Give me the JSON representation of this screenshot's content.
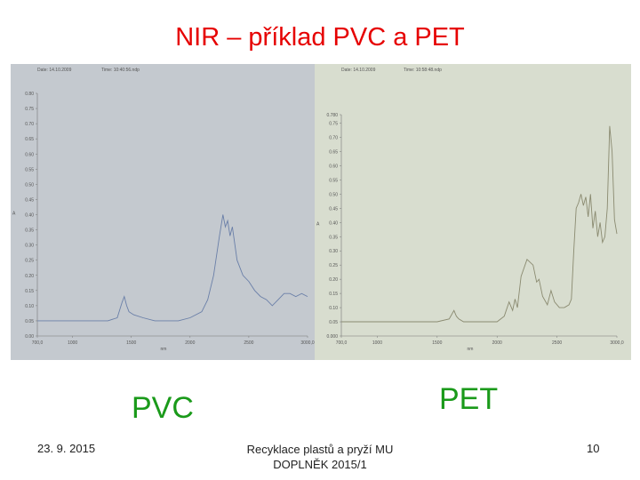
{
  "slide": {
    "title": "NIR – příklad PVC a PET",
    "label_pvc": "PVC",
    "label_pet": "PET",
    "footer_date": "23. 9. 2015",
    "footer_line1": "Recyklace plastů a pryží MU",
    "footer_line2": "DOPLNĚK 2015/1",
    "page_number": "10"
  },
  "chart_data": [
    {
      "type": "line",
      "title": "",
      "header_date": "Date: 14.10.2009",
      "header_time": "Time: 10:40:56.ndp",
      "xlabel": "nm",
      "ylabel": "A",
      "xlim": [
        700,
        3000
      ],
      "ylim": [
        0.0,
        0.8
      ],
      "x_ticks": [
        "700,0",
        "1000",
        "1500",
        "2000",
        "2500",
        "3000,0"
      ],
      "x_tick_values": [
        700,
        1000,
        1500,
        2000,
        2500,
        3000
      ],
      "y_ticks": [
        "0.00",
        "0.05",
        "0.10",
        "0.15",
        "0.20",
        "0.25",
        "0.30",
        "0.35",
        "0.40",
        "0.45",
        "0.50",
        "0.55",
        "0.60",
        "0.65",
        "0.70",
        "0.75",
        "0.80"
      ],
      "y_tick_values": [
        0,
        0.05,
        0.1,
        0.15,
        0.2,
        0.25,
        0.3,
        0.35,
        0.4,
        0.45,
        0.5,
        0.55,
        0.6,
        0.65,
        0.7,
        0.75,
        0.8
      ],
      "color": "#6a7fa8",
      "series": [
        {
          "x": [
            700,
            800,
            900,
            1000,
            1100,
            1200,
            1300,
            1380,
            1420,
            1440,
            1460,
            1480,
            1520,
            1600,
            1700,
            1800,
            1900,
            2000,
            2100,
            2150,
            2200,
            2250,
            2280,
            2300,
            2320,
            2340,
            2360,
            2400,
            2450,
            2500,
            2550,
            2600,
            2650,
            2700,
            2750,
            2800,
            2850,
            2900,
            2950,
            3000
          ],
          "y": [
            0.05,
            0.05,
            0.05,
            0.05,
            0.05,
            0.05,
            0.05,
            0.06,
            0.11,
            0.13,
            0.1,
            0.08,
            0.07,
            0.06,
            0.05,
            0.05,
            0.05,
            0.06,
            0.08,
            0.12,
            0.2,
            0.33,
            0.4,
            0.36,
            0.38,
            0.33,
            0.36,
            0.25,
            0.2,
            0.18,
            0.15,
            0.13,
            0.12,
            0.1,
            0.12,
            0.14,
            0.14,
            0.13,
            0.14,
            0.13
          ]
        }
      ]
    },
    {
      "type": "line",
      "title": "",
      "header_date": "Date: 14.10.2009",
      "header_time": "Time: 10:58:48.ndp",
      "xlabel": "nm",
      "ylabel": "A",
      "xlim": [
        700,
        3000
      ],
      "ylim": [
        0.0,
        0.78
      ],
      "x_ticks": [
        "700,0",
        "1000",
        "1500",
        "2000",
        "2500",
        "3000,0"
      ],
      "x_tick_values": [
        700,
        1000,
        1500,
        2000,
        2500,
        3000
      ],
      "y_ticks": [
        "0.000",
        "0.05",
        "0.10",
        "0.15",
        "0.20",
        "0.25",
        "0.30",
        "0.35",
        "0.40",
        "0.45",
        "0.50",
        "0.55",
        "0.60",
        "0.65",
        "0.70",
        "0.75",
        "0.780"
      ],
      "y_tick_values": [
        0,
        0.05,
        0.1,
        0.15,
        0.2,
        0.25,
        0.3,
        0.35,
        0.4,
        0.45,
        0.5,
        0.55,
        0.6,
        0.65,
        0.7,
        0.75,
        0.78
      ],
      "color": "#8a8a70",
      "series": [
        {
          "x": [
            700,
            800,
            900,
            1000,
            1100,
            1200,
            1300,
            1400,
            1500,
            1600,
            1640,
            1660,
            1680,
            1720,
            1800,
            1900,
            2000,
            2060,
            2100,
            2130,
            2150,
            2170,
            2200,
            2250,
            2300,
            2330,
            2350,
            2380,
            2420,
            2450,
            2480,
            2520,
            2560,
            2600,
            2620,
            2640,
            2660,
            2680,
            2700,
            2720,
            2740,
            2760,
            2780,
            2800,
            2820,
            2840,
            2860,
            2880,
            2900,
            2920,
            2940,
            2960,
            2980,
            3000
          ],
          "y": [
            0.05,
            0.05,
            0.05,
            0.05,
            0.05,
            0.05,
            0.05,
            0.05,
            0.05,
            0.06,
            0.09,
            0.07,
            0.06,
            0.05,
            0.05,
            0.05,
            0.05,
            0.07,
            0.12,
            0.09,
            0.13,
            0.1,
            0.21,
            0.27,
            0.25,
            0.19,
            0.2,
            0.14,
            0.11,
            0.16,
            0.12,
            0.1,
            0.1,
            0.11,
            0.13,
            0.3,
            0.45,
            0.47,
            0.5,
            0.46,
            0.49,
            0.42,
            0.5,
            0.38,
            0.44,
            0.35,
            0.4,
            0.33,
            0.35,
            0.45,
            0.74,
            0.65,
            0.41,
            0.36
          ]
        }
      ]
    }
  ]
}
